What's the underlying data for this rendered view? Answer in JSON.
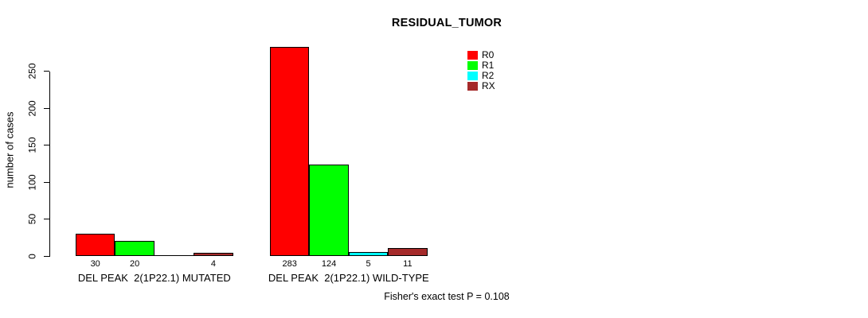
{
  "chart_data": {
    "type": "bar",
    "title": "RESIDUAL_TUMOR",
    "ylabel": "number of cases",
    "xlabel": "",
    "ylim": [
      0,
      250
    ],
    "yticks": [
      0,
      50,
      100,
      150,
      200,
      250
    ],
    "grid": false,
    "legend_position": "top-right",
    "background": "#ffffff",
    "axis_color": "#000000",
    "categories": [
      "DEL PEAK  2(1P22.1) MUTATED",
      "DEL PEAK  2(1P22.1) WILD-TYPE"
    ],
    "series": [
      {
        "name": "R0",
        "color": "#ff0000",
        "values": [
          30,
          283
        ]
      },
      {
        "name": "R1",
        "color": "#00ff00",
        "values": [
          20,
          124
        ]
      },
      {
        "name": "R2",
        "color": "#00ffff",
        "values": [
          0,
          5
        ]
      },
      {
        "name": "RX",
        "color": "#a52a2a",
        "values": [
          4,
          11
        ]
      }
    ],
    "bar_value_labels": [
      [
        "30",
        "20",
        "",
        "4"
      ],
      [
        "283",
        "124",
        "5",
        "11"
      ]
    ],
    "legend_entries": [
      {
        "label": "R0",
        "color": "#ff0000"
      },
      {
        "label": "R1",
        "color": "#00ff00"
      },
      {
        "label": "R2",
        "color": "#00ffff"
      },
      {
        "label": "RX",
        "color": "#a52a2a"
      }
    ],
    "footnote": "Fisher's exact test P = 0.108"
  }
}
